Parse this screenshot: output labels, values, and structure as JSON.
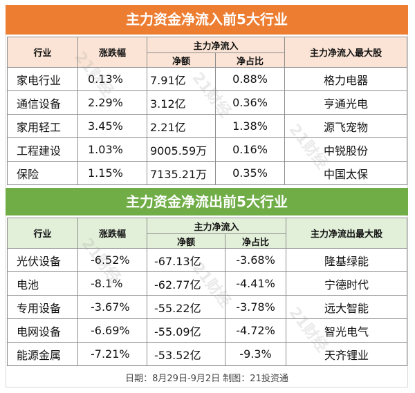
{
  "inflow": {
    "title": "主力资金净流入前5大行业",
    "headers": {
      "industry": "行业",
      "change": "涨跌幅",
      "net_flow_group": "主力净流入",
      "amount": "净额",
      "ratio": "净占比",
      "top_stock": "主力净流入最大股"
    },
    "rows": [
      {
        "industry": "家电行业",
        "change": "0.13%",
        "amount": "7.91亿",
        "ratio": "0.88%",
        "top_stock": "格力电器"
      },
      {
        "industry": "通信设备",
        "change": "2.29%",
        "amount": "3.12亿",
        "ratio": "0.36%",
        "top_stock": "亨通光电"
      },
      {
        "industry": "家用轻工",
        "change": "3.45%",
        "amount": "2.21亿",
        "ratio": "1.38%",
        "top_stock": "源飞宠物"
      },
      {
        "industry": "工程建设",
        "change": "1.03%",
        "amount": "9005.59万",
        "ratio": "0.16%",
        "top_stock": "中锐股份"
      },
      {
        "industry": "保险",
        "change": "1.15%",
        "amount": "7135.21万",
        "ratio": "0.35%",
        "top_stock": "中国太保"
      }
    ]
  },
  "outflow": {
    "title": "主力资金净流出前5大行业",
    "headers": {
      "industry": "行业",
      "change": "涨跌幅",
      "net_flow_group": "主力净流入",
      "amount": "净额",
      "ratio": "净占比",
      "top_stock": "主力净流出最大股"
    },
    "rows": [
      {
        "industry": "光伏设备",
        "change": "-6.52%",
        "amount": "-67.13亿",
        "ratio": "-3.68%",
        "top_stock": "隆基绿能"
      },
      {
        "industry": "电池",
        "change": "-8.1%",
        "amount": "-62.77亿",
        "ratio": "-4.41%",
        "top_stock": "宁德时代"
      },
      {
        "industry": "专用设备",
        "change": "-3.67%",
        "amount": "-55.22亿",
        "ratio": "-3.78%",
        "top_stock": "远大智能"
      },
      {
        "industry": "电网设备",
        "change": "-6.69%",
        "amount": "-55.09亿",
        "ratio": "-4.72%",
        "top_stock": "智光电气"
      },
      {
        "industry": "能源金属",
        "change": "-7.21%",
        "amount": "-53.52亿",
        "ratio": "-9.3%",
        "top_stock": "天齐锂业"
      }
    ]
  },
  "footer": "日期：8月29日-9月2日 制图：21投资通",
  "watermark": "21财经",
  "colors": {
    "inflow_accent": "#ed7d31",
    "outflow_accent": "#70ad47"
  }
}
